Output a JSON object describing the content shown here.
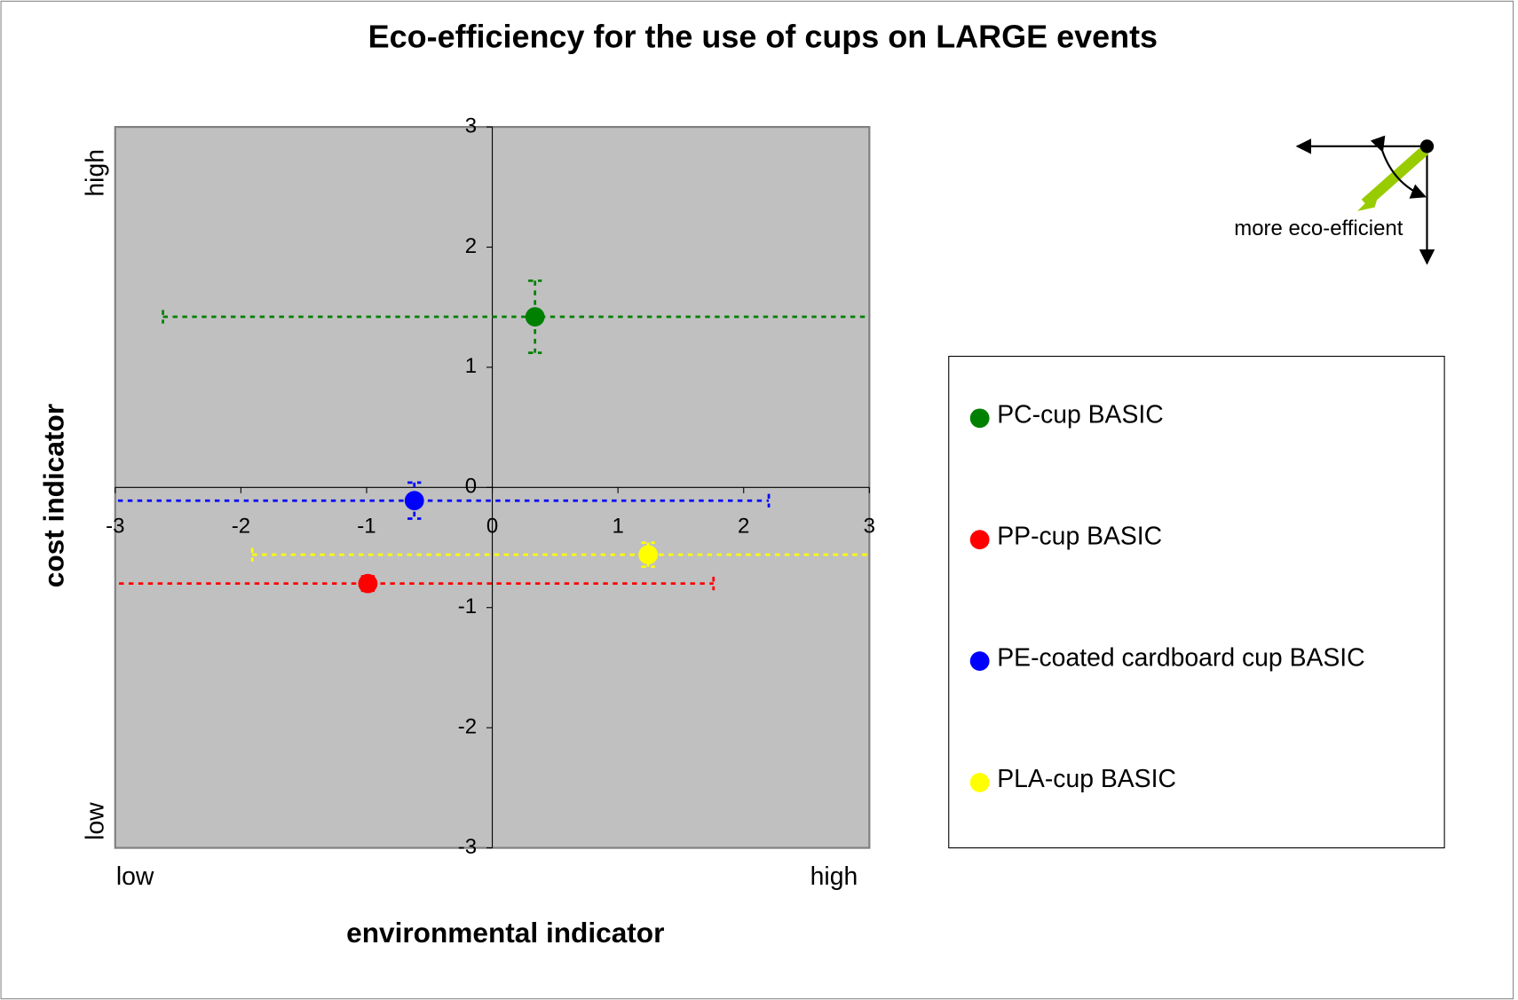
{
  "chart_data": {
    "type": "scatter",
    "title": "Eco-efficiency for the use of cups on LARGE events",
    "xlabel": "environmental indicator",
    "ylabel": "cost indicator",
    "x_end_labels": [
      "low",
      "high"
    ],
    "y_end_labels": [
      "low",
      "high"
    ],
    "annotation": "more eco-efficient",
    "xlim": [
      -3,
      3
    ],
    "ylim": [
      -3,
      3
    ],
    "xticks": [
      -3,
      -2,
      -1,
      0,
      1,
      2,
      3
    ],
    "yticks": [
      -3,
      -2,
      -1,
      0,
      1,
      2,
      3
    ],
    "grid": false,
    "plot_background": "#c0c0c0",
    "series": [
      {
        "name": "PC-cup BASIC",
        "color": "#008000",
        "x": [
          0.34
        ],
        "values": [
          1.42
        ],
        "xerr": [
          2.96
        ],
        "yerr": [
          0.3
        ]
      },
      {
        "name": "PP-cup BASIC",
        "color": "#ff0000",
        "x": [
          -0.99
        ],
        "values": [
          -0.8
        ],
        "xerr": [
          2.75
        ],
        "yerr": [
          0.06
        ]
      },
      {
        "name": "PE-coated cardboard cup BASIC",
        "color": "#0000ff",
        "x": [
          -0.62
        ],
        "values": [
          -0.11
        ],
        "xerr": [
          2.82
        ],
        "yerr": [
          0.15
        ]
      },
      {
        "name": "PLA-cup BASIC",
        "color": "#ffff00",
        "x": [
          1.24
        ],
        "values": [
          -0.56
        ],
        "xerr": [
          3.15
        ],
        "yerr": [
          0.1
        ]
      }
    ]
  }
}
